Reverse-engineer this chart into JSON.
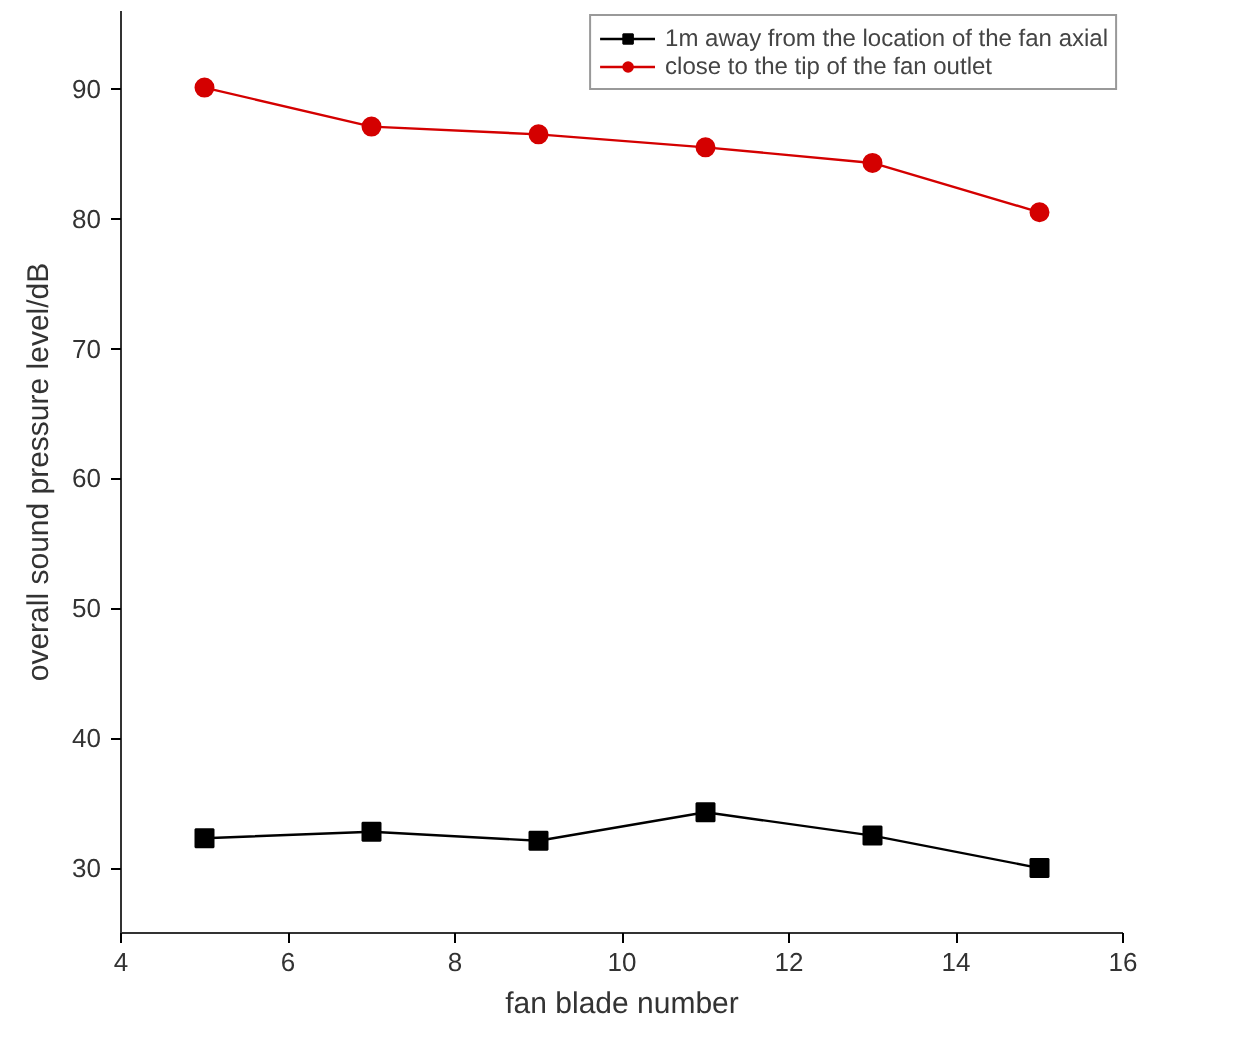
{
  "chart_data": {
    "type": "line",
    "xlabel": "fan blade number",
    "ylabel": "overall sound pressure level/dB",
    "x": [
      5,
      7,
      9,
      11,
      13,
      15
    ],
    "series": [
      {
        "name": "1m away from the location of the fan axial",
        "color": "#000000",
        "marker": "square",
        "values": [
          32.3,
          32.8,
          32.1,
          34.3,
          32.5,
          30.0
        ]
      },
      {
        "name": "close to the tip of the fan outlet",
        "color": "#d40000",
        "marker": "circle",
        "values": [
          90.1,
          87.1,
          86.5,
          85.5,
          84.3,
          80.5
        ]
      }
    ],
    "xlim": [
      4,
      16
    ],
    "xticks": [
      4,
      6,
      8,
      10,
      12,
      14,
      16
    ],
    "ylim": [
      25,
      96
    ],
    "yticks": [
      30,
      40,
      50,
      60,
      70,
      80,
      90
    ],
    "grid": false,
    "legend": "top right",
    "line_style": "solid"
  }
}
